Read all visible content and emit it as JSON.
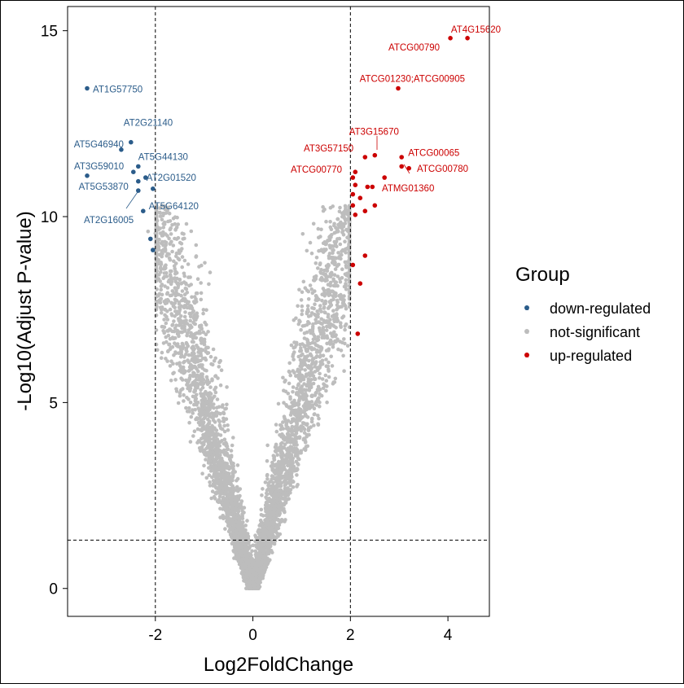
{
  "chart_data": {
    "type": "scatter",
    "title": "",
    "xlabel": "Log2FoldChange",
    "ylabel": "-Log10(Adjust P-value)",
    "xlim": [
      -3.8,
      4.85
    ],
    "ylim": [
      -0.75,
      15.65
    ],
    "x_ticks": [
      {
        "value": -2,
        "label": "-2"
      },
      {
        "value": 0,
        "label": "0"
      },
      {
        "value": 2,
        "label": "2"
      },
      {
        "value": 4,
        "label": "4"
      }
    ],
    "y_ticks": [
      {
        "value": 0,
        "label": "0"
      },
      {
        "value": 5,
        "label": "5"
      },
      {
        "value": 10,
        "label": "10"
      },
      {
        "value": 15,
        "label": "15"
      }
    ],
    "thresholds": {
      "fold_change": [
        -2,
        2
      ],
      "p_value": 1.3
    },
    "grid": false,
    "legend": {
      "title": "Group",
      "position": "right",
      "items": [
        {
          "label": "down-regulated",
          "color": "#2b5c8a"
        },
        {
          "label": "not-significant",
          "color": "#bdbdbd"
        },
        {
          "label": "up-regulated",
          "color": "#cc0000"
        }
      ]
    },
    "colors": {
      "down": "#2b5c8a",
      "ns": "#bdbdbd",
      "up": "#cc0000"
    },
    "series": [
      {
        "name": "down-regulated",
        "color": "#2b5c8a",
        "points": [
          {
            "x": -3.4,
            "y": 13.45,
            "label": "AT1G57750"
          },
          {
            "x": -2.5,
            "y": 12.0,
            "label": "AT2G21140"
          },
          {
            "x": -2.7,
            "y": 11.8,
            "label": "AT5G46940"
          },
          {
            "x": -2.35,
            "y": 11.35,
            "label": "AT5G44130"
          },
          {
            "x": -3.4,
            "y": 11.1,
            "label": "AT3G59010"
          },
          {
            "x": -2.45,
            "y": 11.2,
            "label": ""
          },
          {
            "x": -2.35,
            "y": 10.95,
            "label": ""
          },
          {
            "x": -2.2,
            "y": 11.05,
            "label": "AT2G01520"
          },
          {
            "x": -2.35,
            "y": 10.7,
            "label": "AT5G53870"
          },
          {
            "x": -2.05,
            "y": 10.75,
            "label": ""
          },
          {
            "x": -2.25,
            "y": 10.15,
            "label": "AT5G64120"
          },
          {
            "x": -2.1,
            "y": 9.4,
            "label": ""
          },
          {
            "x": -2.05,
            "y": 9.1,
            "label": ""
          }
        ]
      },
      {
        "name": "not-significant",
        "color": "#bdbdbd",
        "points": []
      },
      {
        "name": "up-regulated",
        "color": "#cc0000",
        "points": [
          {
            "x": 4.4,
            "y": 14.8,
            "label": "AT4G15620"
          },
          {
            "x": 4.05,
            "y": 14.8,
            "label": ""
          },
          {
            "x": 2.98,
            "y": 13.45,
            "label": "ATCG01230;ATCG00905"
          },
          {
            "x": 2.5,
            "y": 11.65,
            "label": "AT3G15670"
          },
          {
            "x": 3.05,
            "y": 11.6,
            "label": ""
          },
          {
            "x": 2.3,
            "y": 11.6,
            "label": ""
          },
          {
            "x": 3.2,
            "y": 11.3,
            "label": "ATCG00065"
          },
          {
            "x": 3.05,
            "y": 11.35,
            "label": ""
          },
          {
            "x": 2.1,
            "y": 11.2,
            "label": ""
          },
          {
            "x": 2.05,
            "y": 11.05,
            "label": ""
          },
          {
            "x": 2.7,
            "y": 11.05,
            "label": ""
          },
          {
            "x": 2.1,
            "y": 10.85,
            "label": ""
          },
          {
            "x": 2.35,
            "y": 10.8,
            "label": ""
          },
          {
            "x": 2.45,
            "y": 10.8,
            "label": ""
          },
          {
            "x": 2.05,
            "y": 10.6,
            "label": ""
          },
          {
            "x": 2.2,
            "y": 10.5,
            "label": ""
          },
          {
            "x": 2.05,
            "y": 10.3,
            "label": ""
          },
          {
            "x": 2.5,
            "y": 10.3,
            "label": ""
          },
          {
            "x": 2.3,
            "y": 10.15,
            "label": ""
          },
          {
            "x": 2.1,
            "y": 10.05,
            "label": ""
          },
          {
            "x": 2.3,
            "y": 8.95,
            "label": ""
          },
          {
            "x": 2.05,
            "y": 8.7,
            "label": ""
          },
          {
            "x": 2.2,
            "y": 8.2,
            "label": ""
          },
          {
            "x": 2.15,
            "y": 6.85,
            "label": ""
          }
        ]
      }
    ],
    "annotations": [
      {
        "text": "AT3G57150",
        "series": "up-regulated"
      },
      {
        "text": "ATCG00770",
        "series": "up-regulated"
      },
      {
        "text": "ATCG00780",
        "series": "up-regulated"
      },
      {
        "text": "ATMG01360",
        "series": "up-regulated"
      },
      {
        "text": "ATCG00790",
        "series": "up-regulated"
      },
      {
        "text": "AT2G16005",
        "series": "down-regulated"
      }
    ]
  }
}
